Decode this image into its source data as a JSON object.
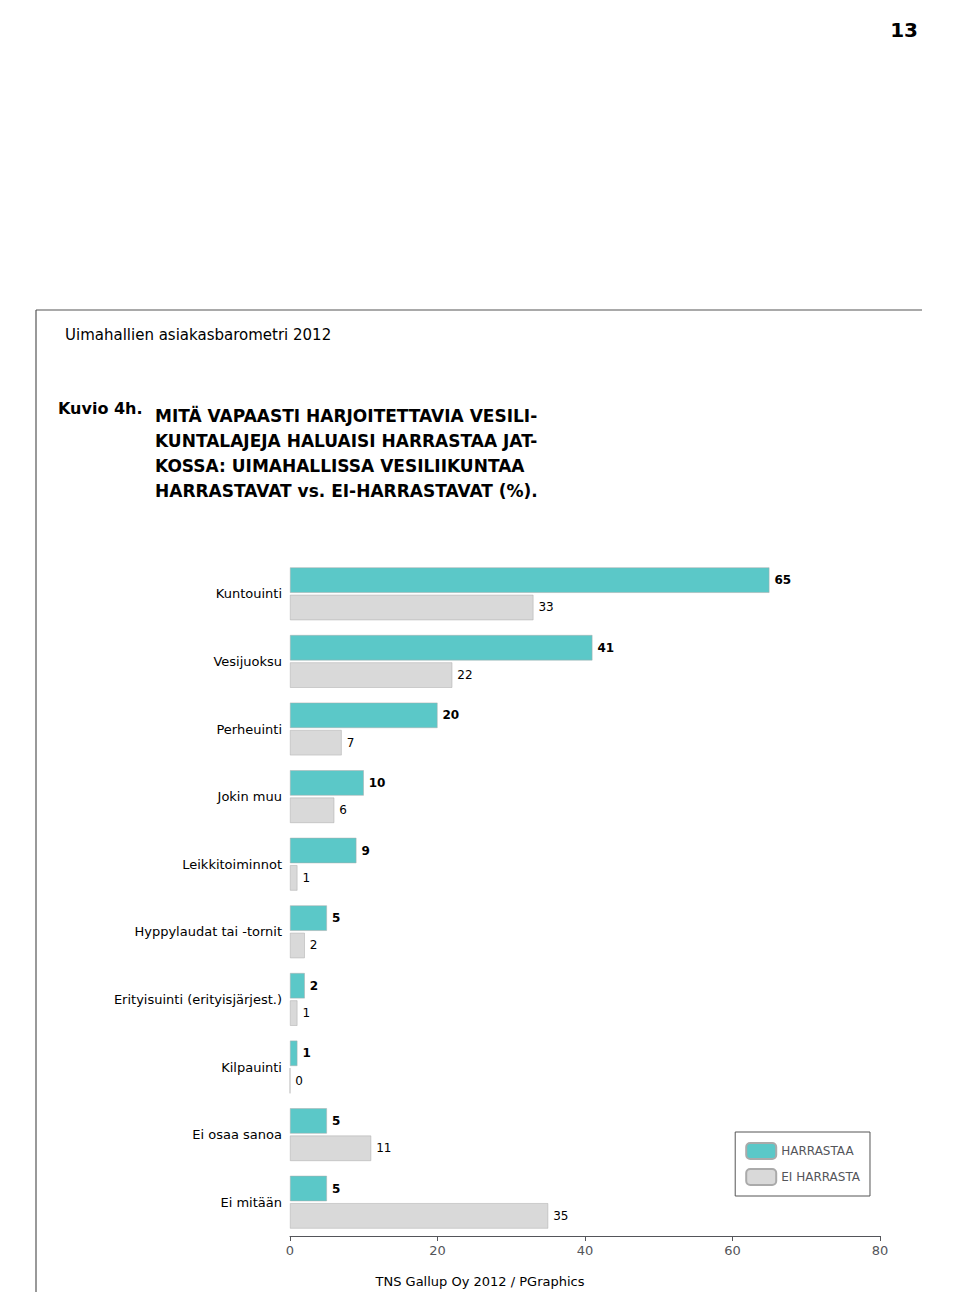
{
  "chart_data": {
    "type": "bar",
    "orientation": "horizontal",
    "title": "MITÄ VAPAASTI HARJOITETTAVIA VESILI-\nKUNTALAJEJA HALUAISI HARRASTAA JAT-\nKOSSA: UIMAHALLISSA VESILIIKUNTAA\nHARRASTAVAT vs. EI-HARRASTAVAT (%).",
    "subtitle": "Uimahallien asiakasbarometri 2012",
    "annotations": [
      "13",
      "Kuvio 4h.",
      "TNS Gallup Oy 2012 / PGraphics"
    ],
    "categories": [
      "Kuntouinti",
      "Vesijuoksu",
      "Perheuinti",
      "Jokin muu",
      "Leikkitoiminnot",
      "Hyppylaudat tai -tornit",
      "Erityisuinti (erityisjärjest.)",
      "Kilpauinti",
      "Ei osaa sanoa",
      "Ei mitään"
    ],
    "series": [
      {
        "name": "HARRASTAA",
        "color": "#5bc8c8",
        "values": [
          65,
          41,
          20,
          10,
          9,
          5,
          2,
          1,
          5,
          5
        ]
      },
      {
        "name": "EI HARRASTA",
        "color": "#d9d9d9",
        "values": [
          33,
          22,
          7,
          6,
          1,
          2,
          1,
          0,
          11,
          35
        ]
      }
    ],
    "xlim": [
      0,
      80
    ],
    "xticks": [
      0,
      20,
      40,
      60,
      80
    ],
    "data_labels": true,
    "grid": false,
    "legend": "lower right"
  }
}
